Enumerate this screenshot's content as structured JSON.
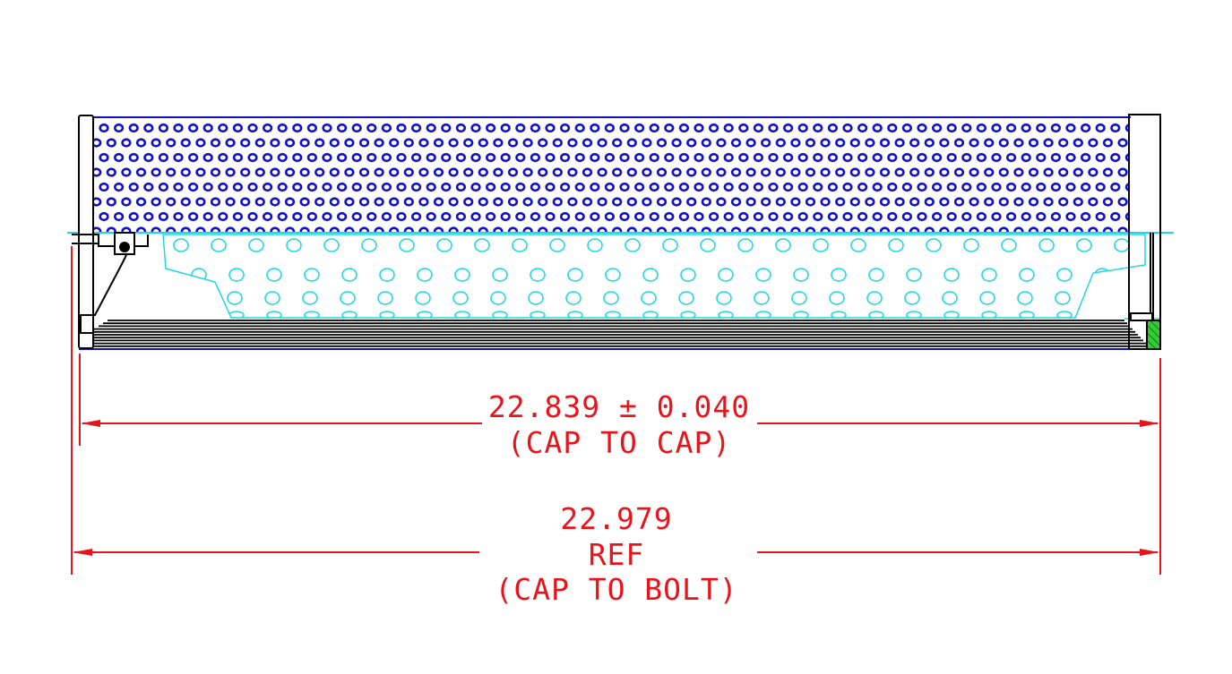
{
  "dimensions": {
    "cap_to_cap": {
      "value": "22.839 ± 0.040",
      "note": "(CAP TO CAP)"
    },
    "cap_to_bolt": {
      "value": "22.979",
      "ref": "REF",
      "note": "(CAP TO BOLT)"
    }
  },
  "colors": {
    "outer_perforation": "#1010c8",
    "inner_perforation": "#22d8e0",
    "dimension": "#e8141b",
    "outline": "#000000",
    "seal": "#33cc33"
  }
}
